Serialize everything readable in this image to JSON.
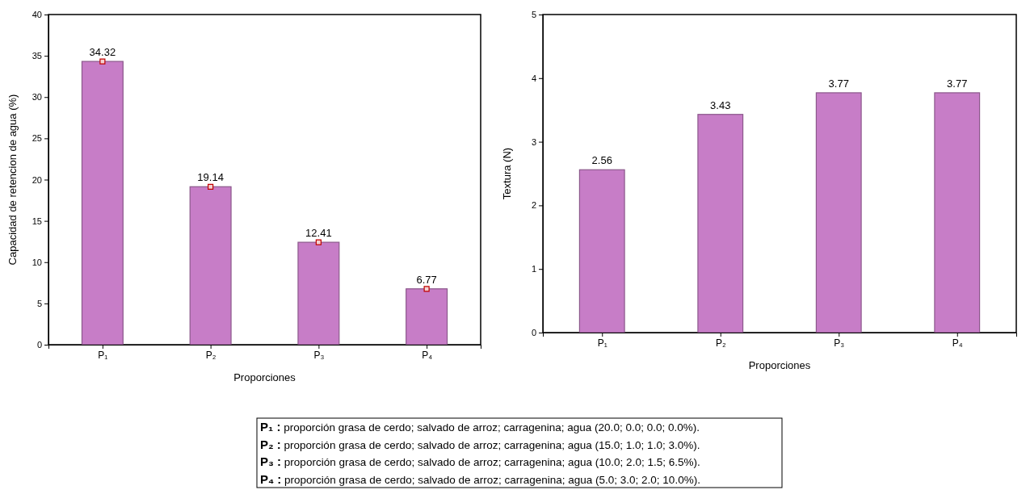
{
  "chart_data": [
    {
      "type": "bar",
      "xlabel": "Proporciones",
      "ylabel": "Capacidad de retencion de agua (%)",
      "categories": [
        "P₁",
        "P₂",
        "P₃",
        "P₄"
      ],
      "series": [
        {
          "type": "bar",
          "color": "#c77dc7",
          "values": [
            34.32,
            19.14,
            12.41,
            6.77
          ],
          "value_labels": [
            "34.32",
            "19.14",
            "12.41",
            "6.77"
          ]
        },
        {
          "type": "scatter",
          "color": "#c00000",
          "values": [
            34.32,
            19.14,
            12.41,
            6.77
          ],
          "x": [
            "P₁",
            "P₂",
            "P₃",
            "P₄"
          ]
        }
      ],
      "marker": "square",
      "ylim": [
        0,
        40
      ],
      "yticks": [
        0,
        5,
        10,
        15,
        20,
        25,
        30,
        35,
        40
      ]
    },
    {
      "type": "bar",
      "xlabel": "Proporciones",
      "ylabel": "Textura (N)",
      "categories": [
        "P₁",
        "P₂",
        "P₃",
        "P₄"
      ],
      "series": [
        {
          "type": "bar",
          "color": "#c77dc7",
          "values": [
            2.56,
            3.43,
            3.77,
            3.77
          ],
          "value_labels": [
            "2.56",
            "3.43",
            "3.77",
            "3.77"
          ]
        }
      ],
      "ylim": [
        0,
        5
      ],
      "yticks": [
        0,
        1,
        2,
        3,
        4,
        5
      ]
    },
    {
      "type": "other",
      "annotations": [
        "P₁ : proporción grasa de cerdo; salvado de arroz; carragenina; agua (20.0; 0.0; 0.0; 0.0%).",
        "P₂ : proporción grasa de cerdo; salvado de arroz; carragenina; agua (15.0; 1.0; 1.0; 3.0%).",
        "P₃ : proporción grasa de cerdo; salvado de arroz; carragenina; agua (10.0; 2.0; 1.5; 6.5%).",
        "P₄ : proporción grasa de cerdo; salvado de arroz; carragenina; agua (5.0; 3.0; 2.0; 10.0%)."
      ]
    }
  ]
}
